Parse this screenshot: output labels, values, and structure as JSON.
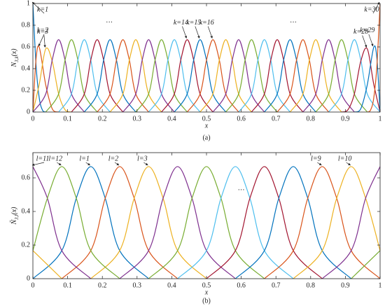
{
  "chart_data": [
    {
      "type": "line",
      "caption": "(a)",
      "xlabel": "x",
      "ylabel": {
        "base": "N",
        "sub": "3,k",
        "arg": "(x)"
      },
      "xlim": [
        0,
        1
      ],
      "ylim": [
        0,
        1
      ],
      "xticks": [
        0,
        0.1,
        0.2,
        0.3,
        0.4,
        0.5,
        0.6,
        0.7,
        0.8,
        0.9,
        1
      ],
      "yticks": [
        0,
        0.2,
        0.4,
        0.6,
        0.8,
        1
      ],
      "annotations": [
        "···",
        "···"
      ],
      "series": [
        {
          "name": "k=1",
          "color": "#0072BD",
          "x": [
            0,
            0.0093,
            0.0185,
            0.0278,
            0.037
          ],
          "values": [
            1,
            0.422,
            0.125,
            0.016,
            0
          ]
        },
        {
          "name": "k=2",
          "color": "#D95319",
          "x": [
            0,
            0.0093,
            0.0185,
            0.037,
            0.0556,
            0.0741
          ],
          "values": [
            0,
            0.496,
            0.594,
            0.25,
            0.031,
            0
          ]
        },
        {
          "name": "k=3",
          "color": "#EDB120",
          "x": [
            0,
            0.0185,
            0.037,
            0.0556,
            0.0741,
            0.0926,
            0.1111
          ],
          "values": [
            0,
            0.26,
            0.583,
            0.469,
            0.167,
            0.021,
            0
          ]
        },
        {
          "color": "#7E2F8E",
          "x": [
            0,
            0.037,
            0.0556,
            0.0741,
            0.0926,
            0.1111,
            0.1481
          ],
          "values": [
            0,
            0.167,
            0.479,
            0.667,
            0.479,
            0.167,
            0
          ]
        },
        {
          "color": "#77AC30",
          "x": [
            0.037,
            0.0741,
            0.0926,
            0.1111,
            0.1296,
            0.1481,
            0.1852
          ],
          "values": [
            0,
            0.167,
            0.479,
            0.667,
            0.479,
            0.167,
            0
          ]
        },
        {
          "color": "#4DBEEE",
          "x": [
            0.0741,
            0.1111,
            0.1296,
            0.1481,
            0.1667,
            0.1852,
            0.2222
          ],
          "values": [
            0,
            0.167,
            0.479,
            0.667,
            0.479,
            0.167,
            0
          ]
        },
        {
          "color": "#A2142F",
          "x": [
            0.1111,
            0.1481,
            0.1667,
            0.1852,
            0.2037,
            0.2222,
            0.2593
          ],
          "values": [
            0,
            0.167,
            0.479,
            0.667,
            0.479,
            0.167,
            0
          ]
        },
        {
          "color": "#0072BD",
          "x": [
            0.1481,
            0.1852,
            0.2037,
            0.2222,
            0.2407,
            0.2593,
            0.2963
          ],
          "values": [
            0,
            0.167,
            0.479,
            0.667,
            0.479,
            0.167,
            0
          ]
        },
        {
          "color": "#D95319",
          "x": [
            0.1852,
            0.2222,
            0.2407,
            0.2593,
            0.2778,
            0.2963,
            0.3333
          ],
          "values": [
            0,
            0.167,
            0.479,
            0.667,
            0.479,
            0.167,
            0
          ]
        },
        {
          "color": "#EDB120",
          "x": [
            0.2222,
            0.2593,
            0.2778,
            0.2963,
            0.3148,
            0.3333,
            0.3704
          ],
          "values": [
            0,
            0.167,
            0.479,
            0.667,
            0.479,
            0.167,
            0
          ]
        },
        {
          "color": "#7E2F8E",
          "x": [
            0.2593,
            0.2963,
            0.3148,
            0.3333,
            0.3519,
            0.3704,
            0.4074
          ],
          "values": [
            0,
            0.167,
            0.479,
            0.667,
            0.479,
            0.167,
            0
          ]
        },
        {
          "color": "#77AC30",
          "x": [
            0.2963,
            0.3333,
            0.3519,
            0.3704,
            0.3889,
            0.4074,
            0.4444
          ],
          "values": [
            0,
            0.167,
            0.479,
            0.667,
            0.479,
            0.167,
            0
          ]
        },
        {
          "color": "#4DBEEE",
          "x": [
            0.3333,
            0.3704,
            0.3889,
            0.4074,
            0.4259,
            0.4444,
            0.4815
          ],
          "values": [
            0,
            0.167,
            0.479,
            0.667,
            0.479,
            0.167,
            0
          ]
        },
        {
          "name": "k=14",
          "color": "#A2142F",
          "x": [
            0.3704,
            0.4074,
            0.4259,
            0.4444,
            0.463,
            0.4815,
            0.5185
          ],
          "values": [
            0,
            0.167,
            0.479,
            0.667,
            0.479,
            0.167,
            0
          ]
        },
        {
          "name": "k=15",
          "color": "#0072BD",
          "x": [
            0.4074,
            0.4444,
            0.463,
            0.4815,
            0.5,
            0.5185,
            0.5556
          ],
          "values": [
            0,
            0.167,
            0.479,
            0.667,
            0.479,
            0.167,
            0
          ]
        },
        {
          "name": "k=16",
          "color": "#D95319",
          "x": [
            0.4444,
            0.4815,
            0.5,
            0.5185,
            0.537,
            0.5556,
            0.5926
          ],
          "values": [
            0,
            0.167,
            0.479,
            0.667,
            0.479,
            0.167,
            0
          ]
        },
        {
          "color": "#EDB120",
          "x": [
            0.4815,
            0.5185,
            0.537,
            0.5556,
            0.5741,
            0.5926,
            0.6296
          ],
          "values": [
            0,
            0.167,
            0.479,
            0.667,
            0.479,
            0.167,
            0
          ]
        },
        {
          "color": "#7E2F8E",
          "x": [
            0.5185,
            0.5556,
            0.5741,
            0.5926,
            0.6111,
            0.6296,
            0.6667
          ],
          "values": [
            0,
            0.167,
            0.479,
            0.667,
            0.479,
            0.167,
            0
          ]
        },
        {
          "color": "#77AC30",
          "x": [
            0.5556,
            0.5926,
            0.6111,
            0.6296,
            0.6481,
            0.6667,
            0.7037
          ],
          "values": [
            0,
            0.167,
            0.479,
            0.667,
            0.479,
            0.167,
            0
          ]
        },
        {
          "color": "#4DBEEE",
          "x": [
            0.5926,
            0.6296,
            0.6481,
            0.6667,
            0.6852,
            0.7037,
            0.7407
          ],
          "values": [
            0,
            0.167,
            0.479,
            0.667,
            0.479,
            0.167,
            0
          ]
        },
        {
          "color": "#A2142F",
          "x": [
            0.6296,
            0.6667,
            0.6852,
            0.7037,
            0.7222,
            0.7407,
            0.7778
          ],
          "values": [
            0,
            0.167,
            0.479,
            0.667,
            0.479,
            0.167,
            0
          ]
        },
        {
          "color": "#0072BD",
          "x": [
            0.6667,
            0.7037,
            0.7222,
            0.7407,
            0.7593,
            0.7778,
            0.8148
          ],
          "values": [
            0,
            0.167,
            0.479,
            0.667,
            0.479,
            0.167,
            0
          ]
        },
        {
          "color": "#D95319",
          "x": [
            0.7037,
            0.7407,
            0.7593,
            0.7778,
            0.7963,
            0.8148,
            0.8519
          ],
          "values": [
            0,
            0.167,
            0.479,
            0.667,
            0.479,
            0.167,
            0
          ]
        },
        {
          "color": "#EDB120",
          "x": [
            0.7407,
            0.7778,
            0.7963,
            0.8148,
            0.8333,
            0.8519,
            0.8889
          ],
          "values": [
            0,
            0.167,
            0.479,
            0.667,
            0.479,
            0.167,
            0
          ]
        },
        {
          "color": "#7E2F8E",
          "x": [
            0.7778,
            0.8148,
            0.8333,
            0.8519,
            0.8704,
            0.8889,
            0.9259
          ],
          "values": [
            0,
            0.167,
            0.479,
            0.667,
            0.479,
            0.167,
            0
          ]
        },
        {
          "color": "#77AC30",
          "x": [
            0.8148,
            0.8519,
            0.8704,
            0.8889,
            0.9074,
            0.9259,
            0.963
          ],
          "values": [
            0,
            0.167,
            0.479,
            0.667,
            0.479,
            0.167,
            0
          ]
        },
        {
          "color": "#4DBEEE",
          "x": [
            0.8519,
            0.8889,
            0.9074,
            0.9259,
            0.9444,
            0.963,
            1
          ],
          "values": [
            0,
            0.167,
            0.479,
            0.667,
            0.479,
            0.167,
            0
          ]
        },
        {
          "name": "k=28",
          "color": "#A2142F",
          "x": [
            0.8889,
            0.9074,
            0.9259,
            0.9444,
            0.963,
            0.9815,
            1
          ],
          "values": [
            0,
            0.021,
            0.167,
            0.469,
            0.583,
            0.26,
            0
          ]
        },
        {
          "name": "k=29",
          "color": "#0072BD",
          "x": [
            0.9259,
            0.9444,
            0.963,
            0.9815,
            0.9907,
            1
          ],
          "values": [
            0,
            0.031,
            0.25,
            0.594,
            0.496,
            0
          ]
        },
        {
          "name": "k=30",
          "color": "#D95319",
          "x": [
            0.963,
            0.9722,
            0.9815,
            0.9907,
            1
          ],
          "values": [
            0,
            0.016,
            0.125,
            0.422,
            1
          ]
        }
      ]
    },
    {
      "type": "line",
      "caption": "(b)",
      "xlabel": "x",
      "ylabel": {
        "base": "Ñ",
        "sub": "3,l",
        "arg": "(x)"
      },
      "xlim": [
        0,
        1
      ],
      "ylim": [
        0,
        0.75
      ],
      "xticks": [
        0,
        0.1,
        0.2,
        0.3,
        0.4,
        0.5,
        0.6,
        0.7,
        0.8,
        0.9,
        1
      ],
      "yticks": [
        0,
        0.2,
        0.4,
        0.6
      ],
      "annotations": [
        "···"
      ],
      "series": [
        {
          "name": "l=1",
          "color": "#0072BD",
          "x": [
            0,
            0.0833,
            0.125,
            0.1667,
            0.2083,
            0.25,
            0.3333
          ],
          "values": [
            0,
            0.167,
            0.479,
            0.667,
            0.479,
            0.167,
            0
          ]
        },
        {
          "name": "l=2",
          "color": "#D95319",
          "x": [
            0.0833,
            0.1667,
            0.2083,
            0.25,
            0.2917,
            0.3333,
            0.4167
          ],
          "values": [
            0,
            0.167,
            0.479,
            0.667,
            0.479,
            0.167,
            0
          ]
        },
        {
          "name": "l=3",
          "color": "#EDB120",
          "x": [
            0.1667,
            0.25,
            0.2917,
            0.3333,
            0.375,
            0.4167,
            0.5
          ],
          "values": [
            0,
            0.167,
            0.479,
            0.667,
            0.479,
            0.167,
            0
          ]
        },
        {
          "color": "#7E2F8E",
          "x": [
            0.25,
            0.3333,
            0.375,
            0.4167,
            0.4583,
            0.5,
            0.5833
          ],
          "values": [
            0,
            0.167,
            0.479,
            0.667,
            0.479,
            0.167,
            0
          ]
        },
        {
          "color": "#77AC30",
          "x": [
            0.3333,
            0.4167,
            0.4583,
            0.5,
            0.5417,
            0.5833,
            0.6667
          ],
          "values": [
            0,
            0.167,
            0.479,
            0.667,
            0.479,
            0.167,
            0
          ]
        },
        {
          "color": "#4DBEEE",
          "x": [
            0.4167,
            0.5,
            0.5417,
            0.5833,
            0.625,
            0.6667,
            0.75
          ],
          "values": [
            0,
            0.167,
            0.479,
            0.667,
            0.479,
            0.167,
            0
          ]
        },
        {
          "color": "#A2142F",
          "x": [
            0.5,
            0.5833,
            0.625,
            0.6667,
            0.7083,
            0.75,
            0.8333
          ],
          "values": [
            0,
            0.167,
            0.479,
            0.667,
            0.479,
            0.167,
            0
          ]
        },
        {
          "color": "#0072BD",
          "x": [
            0.5833,
            0.6667,
            0.7083,
            0.75,
            0.7917,
            0.8333,
            0.9167
          ],
          "values": [
            0,
            0.167,
            0.479,
            0.667,
            0.479,
            0.167,
            0
          ]
        },
        {
          "name": "l=9",
          "color": "#D95319",
          "x": [
            0.6667,
            0.75,
            0.7917,
            0.8333,
            0.875,
            0.9167,
            1
          ],
          "values": [
            0,
            0.167,
            0.479,
            0.667,
            0.479,
            0.167,
            0
          ]
        },
        {
          "name": "l=10",
          "color": "#EDB120",
          "x": [
            0,
            0.0833,
            null,
            0.75,
            0.8333,
            0.875,
            0.9167,
            0.9583,
            1
          ],
          "values": [
            0.167,
            0,
            null,
            0,
            0.167,
            0.479,
            0.667,
            0.479,
            0.167
          ]
        },
        {
          "name": "l=11",
          "color": "#7E2F8E",
          "x": [
            0,
            0.0417,
            0.0833,
            0.1667,
            null,
            0.8333,
            0.9167,
            0.9583,
            1
          ],
          "values": [
            0.667,
            0.479,
            0.167,
            0,
            null,
            0,
            0.167,
            0.479,
            0.667
          ]
        },
        {
          "name": "l=12",
          "color": "#77AC30",
          "x": [
            0,
            0.0417,
            0.0833,
            0.125,
            0.1667,
            0.25,
            null,
            0.9167,
            1
          ],
          "values": [
            0.167,
            0.479,
            0.667,
            0.479,
            0.167,
            0,
            null,
            0,
            0.167
          ]
        }
      ]
    }
  ]
}
